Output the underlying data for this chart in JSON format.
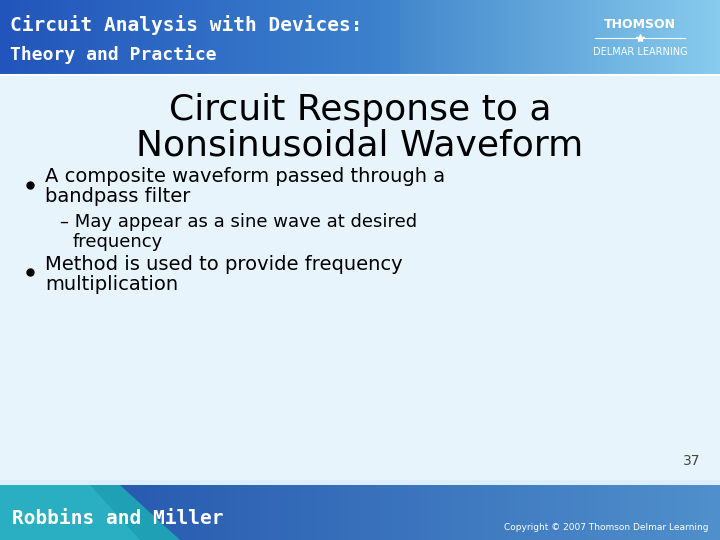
{
  "title_line1": "Circuit Response to a",
  "title_line2": "Nonsinusoidal Waveform",
  "bullet1": "A composite waveform passed through a\nbandpass filter",
  "sub_bullet1": "– May appear as a sine wave at desired\n   frequency",
  "bullet2": "Method is used to provide frequency\nmultiplication",
  "page_number": "37",
  "header_text_line1": "Circuit Analysis with Devices:",
  "header_text_line2": "Theory and Practice",
  "header_right1": "THOMSON",
  "header_right2": "DELMAR LEARNING",
  "footer_left": "Robbins and Miller",
  "footer_right": "Copyright © 2007 Thomson Delmar Learning",
  "bg_color": "#ddeeff",
  "header_bg_color1": "#1a4fa0",
  "header_bg_color2": "#3a7fd0",
  "footer_bg_color": "#2255aa",
  "title_color": "#000000",
  "body_color": "#000000",
  "header_text_color": "#ffffff",
  "footer_text_color": "#ffffff"
}
